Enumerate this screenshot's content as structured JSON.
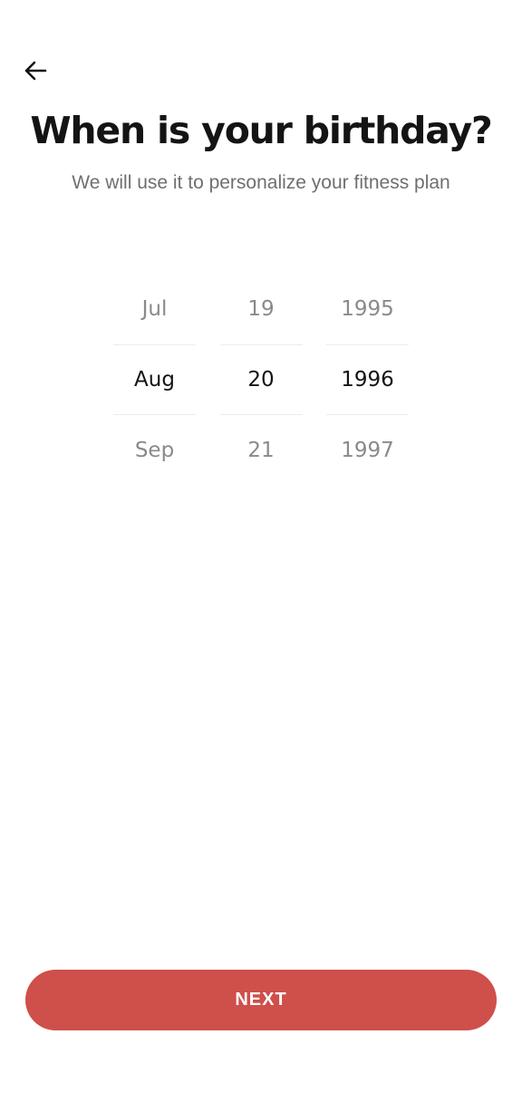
{
  "header": {
    "back_icon": "arrow-left-icon",
    "title": "When is your birthday?",
    "subtitle": "We will use it to personalize your fitness plan"
  },
  "picker": {
    "month": {
      "above": "Jul",
      "selected": "Aug",
      "below": "Sep"
    },
    "day": {
      "above": "19",
      "selected": "20",
      "below": "21"
    },
    "year": {
      "above": "1995",
      "selected": "1996",
      "below": "1997"
    }
  },
  "footer": {
    "next_label": "NEXT"
  },
  "colors": {
    "accent": "#cf4f4a",
    "title_text": "#141414",
    "subtitle_text": "#6f6f6f",
    "inactive_picker_text": "#8a8a8a",
    "divider": "#ececec"
  }
}
